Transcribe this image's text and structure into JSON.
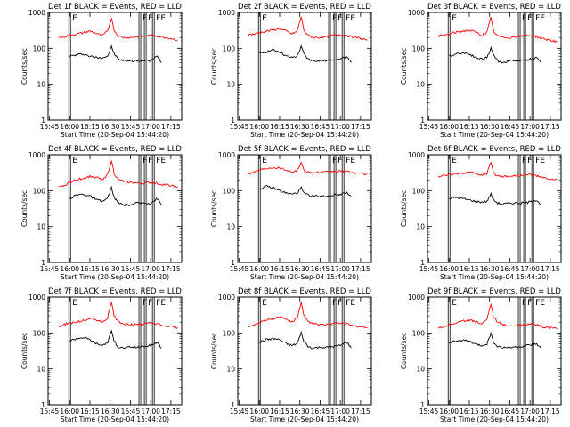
{
  "figure": {
    "xlabel": "Start Time (20-Sep-04 15:44:20)",
    "ylabel": "Counts/sec",
    "xticks": [
      "15:45",
      "16:00",
      "16:15",
      "16:30",
      "16:45",
      "17:00",
      "17:15"
    ],
    "yticks": [
      "1",
      "10",
      "100",
      "1000"
    ],
    "series_colors": {
      "events": "#000000",
      "lld": "#ff0000"
    },
    "marker_labels": [
      "E",
      "F",
      "F",
      "FE"
    ]
  },
  "chart_data": [
    {
      "type": "line",
      "title": "Det 1f BLACK = Events, RED = LLD",
      "xlabel": "Start Time (20-Sep-04 15:44:20)",
      "ylabel": "Counts/sec",
      "yscale": "log",
      "ylim": [
        1,
        1000
      ],
      "xlim": [
        "15:44",
        "17:23"
      ],
      "x": [
        "15:52",
        "15:56",
        "16:00",
        "16:05",
        "16:10",
        "16:15",
        "16:20",
        "16:24",
        "16:28",
        "16:31",
        "16:33",
        "16:36",
        "16:40",
        "16:45",
        "16:50",
        "16:55",
        "17:00",
        "17:05",
        "17:08",
        "17:15",
        "17:20"
      ],
      "series": [
        {
          "name": "Events",
          "values": [
            null,
            null,
            60,
            65,
            70,
            60,
            55,
            55,
            60,
            110,
            70,
            50,
            45,
            45,
            45,
            45,
            45,
            60,
            40,
            null,
            null
          ]
        },
        {
          "name": "LLD",
          "values": [
            200,
            210,
            230,
            250,
            270,
            300,
            260,
            220,
            300,
            700,
            320,
            220,
            200,
            200,
            210,
            220,
            230,
            220,
            210,
            190,
            170
          ]
        }
      ],
      "markers": [
        {
          "label": "E",
          "x": "16:00"
        },
        {
          "label": "F",
          "x": "16:52"
        },
        {
          "label": "F",
          "x": "16:56"
        },
        {
          "label": "FE",
          "x": "17:02"
        }
      ]
    },
    {
      "type": "line",
      "title": "Det 2f BLACK = Events, RED = LLD",
      "xlabel": "Start Time (20-Sep-04 15:44:20)",
      "ylabel": "Counts/sec",
      "yscale": "log",
      "ylim": [
        1,
        1000
      ],
      "xlim": [
        "15:44",
        "17:23"
      ],
      "x": [
        "15:52",
        "15:56",
        "16:00",
        "16:05",
        "16:10",
        "16:15",
        "16:20",
        "16:24",
        "16:28",
        "16:31",
        "16:33",
        "16:36",
        "16:40",
        "16:45",
        "16:50",
        "16:55",
        "17:00",
        "17:05",
        "17:08",
        "17:15",
        "17:20"
      ],
      "series": [
        {
          "name": "Events",
          "values": [
            null,
            null,
            70,
            80,
            90,
            80,
            60,
            55,
            60,
            110,
            70,
            50,
            45,
            45,
            45,
            50,
            50,
            60,
            40,
            null,
            null
          ]
        },
        {
          "name": "LLD",
          "values": [
            240,
            250,
            270,
            300,
            320,
            350,
            300,
            250,
            300,
            750,
            320,
            230,
            200,
            200,
            210,
            230,
            240,
            230,
            210,
            190,
            170
          ]
        }
      ],
      "markers": [
        {
          "label": "E",
          "x": "16:00"
        },
        {
          "label": "F",
          "x": "16:52"
        },
        {
          "label": "F",
          "x": "16:56"
        },
        {
          "label": "FE",
          "x": "17:02"
        }
      ]
    },
    {
      "type": "line",
      "title": "Det 3f BLACK = Events, RED = LLD",
      "xlabel": "Start Time (20-Sep-04 15:44:20)",
      "ylabel": "Counts/sec",
      "yscale": "log",
      "ylim": [
        1,
        1000
      ],
      "xlim": [
        "15:44",
        "17:23"
      ],
      "x": [
        "15:52",
        "15:56",
        "16:00",
        "16:05",
        "16:10",
        "16:15",
        "16:20",
        "16:24",
        "16:28",
        "16:31",
        "16:33",
        "16:36",
        "16:40",
        "16:45",
        "16:50",
        "16:55",
        "17:00",
        "17:05",
        "17:08",
        "17:15",
        "17:20"
      ],
      "series": [
        {
          "name": "Events",
          "values": [
            null,
            null,
            60,
            70,
            75,
            70,
            55,
            50,
            55,
            100,
            65,
            45,
            40,
            45,
            45,
            45,
            50,
            55,
            40,
            null,
            null
          ]
        },
        {
          "name": "LLD",
          "values": [
            220,
            230,
            250,
            280,
            300,
            320,
            280,
            230,
            280,
            700,
            300,
            220,
            200,
            200,
            210,
            220,
            230,
            210,
            190,
            170,
            150
          ]
        }
      ],
      "markers": [
        {
          "label": "E",
          "x": "16:00"
        },
        {
          "label": "F",
          "x": "16:52"
        },
        {
          "label": "F",
          "x": "16:56"
        },
        {
          "label": "FE",
          "x": "17:02"
        }
      ]
    },
    {
      "type": "line",
      "title": "Det 4f BLACK = Events, RED = LLD",
      "xlabel": "Start Time (20-Sep-04 15:44:20)",
      "ylabel": "Counts/sec",
      "yscale": "log",
      "ylim": [
        1,
        1000
      ],
      "xlim": [
        "15:44",
        "17:23"
      ],
      "x": [
        "15:52",
        "15:56",
        "16:00",
        "16:05",
        "16:10",
        "16:15",
        "16:20",
        "16:24",
        "16:28",
        "16:31",
        "16:33",
        "16:36",
        "16:40",
        "16:45",
        "16:50",
        "16:55",
        "17:00",
        "17:05",
        "17:08",
        "17:15",
        "17:20"
      ],
      "series": [
        {
          "name": "Events",
          "values": [
            null,
            null,
            60,
            75,
            80,
            70,
            55,
            50,
            60,
            120,
            65,
            45,
            40,
            40,
            45,
            45,
            45,
            60,
            40,
            null,
            null
          ]
        },
        {
          "name": "LLD",
          "values": [
            120,
            140,
            170,
            200,
            220,
            250,
            230,
            200,
            280,
            700,
            300,
            200,
            180,
            170,
            160,
            160,
            170,
            160,
            150,
            140,
            130
          ]
        }
      ],
      "markers": [
        {
          "label": "E",
          "x": "16:00"
        },
        {
          "label": "F",
          "x": "16:52"
        },
        {
          "label": "F",
          "x": "16:56"
        },
        {
          "label": "FE",
          "x": "17:02"
        }
      ]
    },
    {
      "type": "line",
      "title": "Det 5f BLACK = Events, RED = LLD",
      "xlabel": "Start Time (20-Sep-04 15:44:20)",
      "ylabel": "Counts/sec",
      "yscale": "log",
      "ylim": [
        1,
        1000
      ],
      "xlim": [
        "15:44",
        "17:23"
      ],
      "x": [
        "15:52",
        "15:56",
        "16:00",
        "16:05",
        "16:10",
        "16:15",
        "16:20",
        "16:24",
        "16:28",
        "16:31",
        "16:33",
        "16:36",
        "16:40",
        "16:45",
        "16:50",
        "16:55",
        "17:00",
        "17:05",
        "17:08",
        "17:15",
        "17:20"
      ],
      "series": [
        {
          "name": "Events",
          "values": [
            null,
            null,
            110,
            130,
            120,
            100,
            85,
            80,
            85,
            120,
            85,
            75,
            70,
            70,
            70,
            75,
            80,
            90,
            70,
            null,
            null
          ]
        },
        {
          "name": "LLD",
          "values": [
            300,
            330,
            380,
            420,
            450,
            430,
            380,
            340,
            360,
            600,
            380,
            330,
            320,
            320,
            330,
            340,
            350,
            340,
            320,
            300,
            290
          ]
        }
      ],
      "markers": [
        {
          "label": "E",
          "x": "16:00"
        },
        {
          "label": "F",
          "x": "16:52"
        },
        {
          "label": "F",
          "x": "16:56"
        },
        {
          "label": "FE",
          "x": "17:02"
        }
      ]
    },
    {
      "type": "line",
      "title": "Det 6f BLACK = Events, RED = LLD",
      "xlabel": "Start Time (20-Sep-04 15:44:20)",
      "ylabel": "Counts/sec",
      "yscale": "log",
      "ylim": [
        1,
        1000
      ],
      "xlim": [
        "15:44",
        "17:23"
      ],
      "x": [
        "15:52",
        "15:56",
        "16:00",
        "16:05",
        "16:10",
        "16:15",
        "16:20",
        "16:24",
        "16:28",
        "16:31",
        "16:33",
        "16:36",
        "16:40",
        "16:45",
        "16:50",
        "16:55",
        "17:00",
        "17:05",
        "17:08",
        "17:15",
        "17:20"
      ],
      "series": [
        {
          "name": "Events",
          "values": [
            null,
            null,
            60,
            65,
            60,
            55,
            50,
            48,
            50,
            80,
            55,
            45,
            42,
            45,
            45,
            45,
            48,
            55,
            40,
            null,
            null
          ]
        },
        {
          "name": "LLD",
          "values": [
            250,
            260,
            280,
            300,
            310,
            320,
            300,
            270,
            300,
            650,
            300,
            260,
            250,
            250,
            260,
            270,
            280,
            260,
            230,
            210,
            200
          ]
        }
      ],
      "markers": [
        {
          "label": "E",
          "x": "16:00"
        },
        {
          "label": "F",
          "x": "16:52"
        },
        {
          "label": "F",
          "x": "16:56"
        },
        {
          "label": "FE",
          "x": "17:02"
        }
      ]
    },
    {
      "type": "line",
      "title": "Det 7f BLACK = Events, RED = LLD",
      "xlabel": "Start Time (20-Sep-04 15:44:20)",
      "ylabel": "Counts/sec",
      "yscale": "log",
      "ylim": [
        1,
        1000
      ],
      "xlim": [
        "15:44",
        "17:23"
      ],
      "x": [
        "15:52",
        "15:56",
        "16:00",
        "16:05",
        "16:10",
        "16:15",
        "16:20",
        "16:24",
        "16:28",
        "16:31",
        "16:33",
        "16:36",
        "16:40",
        "16:45",
        "16:50",
        "16:55",
        "17:00",
        "17:05",
        "17:08",
        "17:15",
        "17:20"
      ],
      "series": [
        {
          "name": "Events",
          "values": [
            null,
            null,
            60,
            70,
            75,
            65,
            50,
            45,
            55,
            110,
            60,
            40,
            38,
            40,
            40,
            42,
            45,
            55,
            38,
            null,
            null
          ]
        },
        {
          "name": "LLD",
          "values": [
            150,
            170,
            190,
            200,
            220,
            260,
            230,
            200,
            260,
            700,
            300,
            210,
            180,
            170,
            170,
            180,
            190,
            180,
            160,
            150,
            140
          ]
        }
      ],
      "markers": [
        {
          "label": "E",
          "x": "16:00"
        },
        {
          "label": "F",
          "x": "16:52"
        },
        {
          "label": "F",
          "x": "16:56"
        },
        {
          "label": "FE",
          "x": "17:02"
        }
      ]
    },
    {
      "type": "line",
      "title": "Det 8f BLACK = Events, RED = LLD",
      "xlabel": "Start Time (20-Sep-04 15:44:20)",
      "ylabel": "Counts/sec",
      "yscale": "log",
      "ylim": [
        1,
        1000
      ],
      "xlim": [
        "15:44",
        "17:23"
      ],
      "x": [
        "15:52",
        "15:56",
        "16:00",
        "16:05",
        "16:10",
        "16:15",
        "16:20",
        "16:24",
        "16:28",
        "16:31",
        "16:33",
        "16:36",
        "16:40",
        "16:45",
        "16:50",
        "16:55",
        "17:00",
        "17:05",
        "17:08",
        "17:15",
        "17:20"
      ],
      "series": [
        {
          "name": "Events",
          "values": [
            null,
            null,
            55,
            65,
            70,
            65,
            50,
            45,
            50,
            100,
            60,
            42,
            38,
            40,
            40,
            42,
            45,
            55,
            38,
            null,
            null
          ]
        },
        {
          "name": "LLD",
          "values": [
            150,
            170,
            200,
            230,
            250,
            280,
            240,
            200,
            260,
            700,
            300,
            210,
            180,
            170,
            170,
            180,
            190,
            180,
            160,
            150,
            140
          ]
        }
      ],
      "markers": [
        {
          "label": "E",
          "x": "16:00"
        },
        {
          "label": "F",
          "x": "16:52"
        },
        {
          "label": "F",
          "x": "16:56"
        },
        {
          "label": "FE",
          "x": "17:02"
        }
      ]
    },
    {
      "type": "line",
      "title": "Det 9f BLACK = Events, RED = LLD",
      "xlabel": "Start Time (20-Sep-04 15:44:20)",
      "ylabel": "Counts/sec",
      "yscale": "log",
      "ylim": [
        1,
        1000
      ],
      "xlim": [
        "15:44",
        "17:23"
      ],
      "x": [
        "15:52",
        "15:56",
        "16:00",
        "16:05",
        "16:10",
        "16:15",
        "16:20",
        "16:24",
        "16:28",
        "16:31",
        "16:33",
        "16:36",
        "16:40",
        "16:45",
        "16:50",
        "16:55",
        "17:00",
        "17:05",
        "17:08",
        "17:15",
        "17:20"
      ],
      "series": [
        {
          "name": "Events",
          "values": [
            null,
            null,
            55,
            60,
            62,
            58,
            48,
            44,
            50,
            95,
            55,
            42,
            38,
            40,
            40,
            42,
            45,
            50,
            38,
            null,
            null
          ]
        },
        {
          "name": "LLD",
          "values": [
            140,
            150,
            170,
            190,
            210,
            230,
            210,
            180,
            240,
            650,
            280,
            200,
            170,
            160,
            160,
            170,
            180,
            170,
            150,
            140,
            130
          ]
        }
      ],
      "markers": [
        {
          "label": "E",
          "x": "16:00"
        },
        {
          "label": "F",
          "x": "16:52"
        },
        {
          "label": "F",
          "x": "16:56"
        },
        {
          "label": "FE",
          "x": "17:02"
        }
      ]
    }
  ]
}
